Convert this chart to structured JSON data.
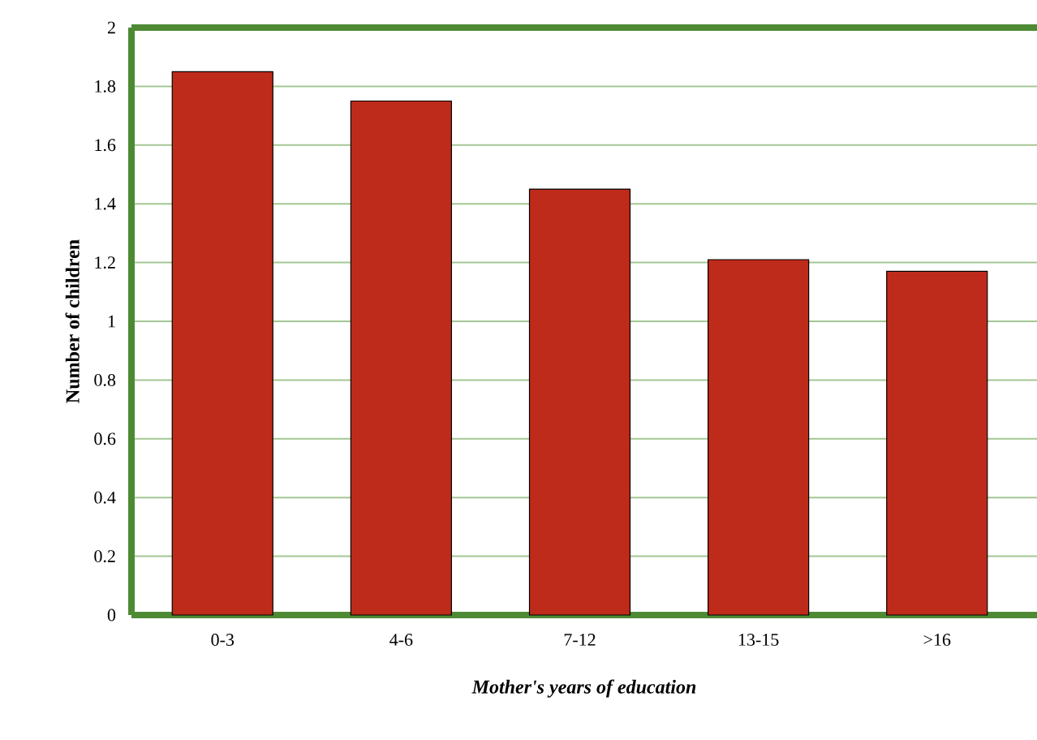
{
  "chart_data": {
    "type": "bar",
    "xlabel": "Mother's years of education",
    "ylabel": "Number of children",
    "categories": [
      "0-3",
      "4-6",
      "7-12",
      "13-15",
      ">16"
    ],
    "values": [
      1.85,
      1.75,
      1.45,
      1.21,
      1.17
    ],
    "color": "#bf2b1a",
    "ylim": [
      0,
      2
    ],
    "yticks": [
      0,
      0.2,
      0.4,
      0.6,
      0.8,
      1,
      1.2,
      1.4,
      1.6,
      1.8,
      2
    ],
    "grid": "y"
  }
}
